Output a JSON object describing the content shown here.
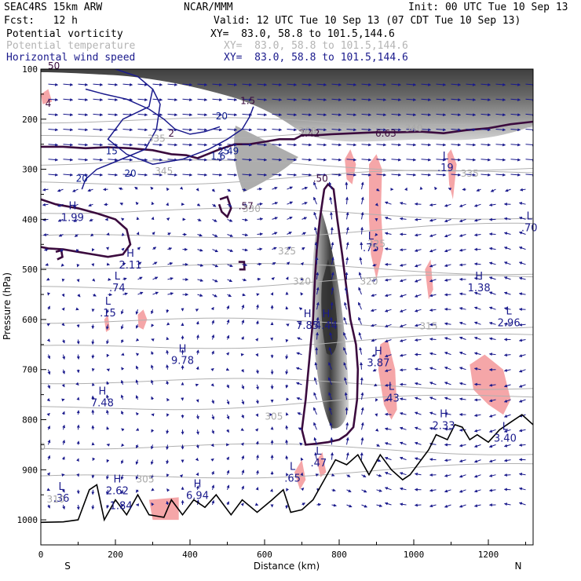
{
  "header": {
    "model": "SEAC4RS 15km ARW",
    "org": "NCAR/MMM",
    "init": "Init: 00 UTC Tue 10 Sep 13",
    "fcst": "Fcst:   12 h",
    "valid": "Valid: 12 UTC Tue 10 Sep 13 (07 CDT Tue 10 Sep 13)"
  },
  "legend": [
    {
      "name": "Potential vorticity",
      "xy": "XY=  83.0, 58.8 to 101.5,144.6",
      "color": "#000000"
    },
    {
      "name": "Potential temperature",
      "xy": "XY=  83.0, 58.8 to 101.5,144.6",
      "color": "#b4b4b4"
    },
    {
      "name": "Horizontal wind speed",
      "xy": "XY=  83.0, 58.8 to 101.5,144.6",
      "color": "#1a1a8c"
    }
  ],
  "chart_data": {
    "type": "cross-section",
    "xlabel": "Distance (km)",
    "ylabel": "Pressure (hPa)",
    "xlim": [
      0,
      1320
    ],
    "ylim": [
      1050,
      100
    ],
    "x_ticks": [
      0,
      200,
      400,
      600,
      800,
      1000,
      1200
    ],
    "x_tick_labels": [
      "0",
      "200",
      "400",
      "600",
      "800",
      "1000",
      "1200"
    ],
    "y_ticks": [
      100,
      200,
      300,
      400,
      500,
      600,
      700,
      800,
      900,
      1000
    ],
    "y_tick_labels": [
      "100",
      "200",
      "300",
      "400",
      "500",
      "600",
      "700",
      "800",
      "900",
      "1000"
    ],
    "x_end_labels": {
      "left": "S",
      "right": "N"
    },
    "colors": {
      "pv_shade": "#3a3a3a",
      "pv_contour": "#3b0b3e",
      "theta": "#b0b0b0",
      "wind": "#1a1a8c",
      "pink": "#f5a6a8",
      "terrain": "#000000"
    },
    "terrain": [
      [
        0,
        1005
      ],
      [
        60,
        1004
      ],
      [
        100,
        1000
      ],
      [
        130,
        940
      ],
      [
        150,
        930
      ],
      [
        170,
        1000
      ],
      [
        200,
        960
      ],
      [
        230,
        990
      ],
      [
        260,
        950
      ],
      [
        290,
        990
      ],
      [
        330,
        995
      ],
      [
        350,
        960
      ],
      [
        380,
        990
      ],
      [
        410,
        960
      ],
      [
        440,
        975
      ],
      [
        470,
        950
      ],
      [
        510,
        990
      ],
      [
        540,
        960
      ],
      [
        580,
        985
      ],
      [
        620,
        960
      ],
      [
        650,
        940
      ],
      [
        670,
        985
      ],
      [
        700,
        980
      ],
      [
        730,
        960
      ],
      [
        760,
        920
      ],
      [
        790,
        880
      ],
      [
        820,
        890
      ],
      [
        850,
        870
      ],
      [
        880,
        910
      ],
      [
        910,
        870
      ],
      [
        940,
        900
      ],
      [
        970,
        920
      ],
      [
        990,
        910
      ],
      [
        1020,
        880
      ],
      [
        1040,
        860
      ],
      [
        1060,
        830
      ],
      [
        1090,
        840
      ],
      [
        1110,
        810
      ],
      [
        1130,
        815
      ],
      [
        1150,
        840
      ],
      [
        1170,
        830
      ],
      [
        1200,
        845
      ],
      [
        1230,
        820
      ],
      [
        1260,
        805
      ],
      [
        1290,
        790
      ],
      [
        1320,
        810
      ]
    ],
    "hl_labels": [
      {
        "letter": "H",
        "x": 85,
        "p": 380,
        "value": "1.99"
      },
      {
        "letter": "H",
        "x": 240,
        "p": 475,
        "value": "2.11"
      },
      {
        "letter": "L",
        "x": 205,
        "p": 520,
        "value": ".74"
      },
      {
        "letter": "L",
        "x": 180,
        "p": 570,
        "value": ".15"
      },
      {
        "letter": "H",
        "x": 380,
        "p": 665,
        "value": "9.78"
      },
      {
        "letter": "H",
        "x": 165,
        "p": 750,
        "value": "7.48"
      },
      {
        "letter": "H",
        "x": 205,
        "p": 925,
        "value": "2.62"
      },
      {
        "letter": "",
        "x": 215,
        "p": 955,
        "value": "1.84"
      },
      {
        "letter": "L",
        "x": 55,
        "p": 940,
        "value": ".36"
      },
      {
        "letter": "H",
        "x": 420,
        "p": 935,
        "value": "6.94"
      },
      {
        "letter": "L",
        "x": 675,
        "p": 900,
        "value": ".65"
      },
      {
        "letter": "L",
        "x": 745,
        "p": 870,
        "value": ".47"
      },
      {
        "letter": "H",
        "x": 715,
        "p": 595,
        "value": "7.85"
      },
      {
        "letter": "H",
        "x": 765,
        "p": 595,
        "value": "4.44"
      },
      {
        "letter": "H",
        "x": 905,
        "p": 670,
        "value": "3.87"
      },
      {
        "letter": "L",
        "x": 940,
        "p": 740,
        "value": ".43"
      },
      {
        "letter": "L",
        "x": 885,
        "p": 440,
        "value": ".75"
      },
      {
        "letter": "L",
        "x": 1085,
        "p": 280,
        "value": ".19"
      },
      {
        "letter": "H",
        "x": 1175,
        "p": 520,
        "value": "1.38"
      },
      {
        "letter": "L",
        "x": 1255,
        "p": 590,
        "value": "2.96"
      },
      {
        "letter": "L",
        "x": 1310,
        "p": 400,
        "value": ".70"
      },
      {
        "letter": "H",
        "x": 1080,
        "p": 795,
        "value": "2.33"
      },
      {
        "letter": "L",
        "x": 1245,
        "p": 820,
        "value": "3.40"
      }
    ],
    "pv_labels": [
      {
        "x": 550,
        "p": 380,
        "text": ".57"
      },
      {
        "x": 750,
        "p": 325,
        "text": ".50"
      },
      {
        "x": 350,
        "p": 235,
        "text": "2"
      },
      {
        "x": 555,
        "p": 170,
        "text": "1.5"
      },
      {
        "x": 720,
        "p": 235,
        "text": "2.42"
      },
      {
        "x": 925,
        "p": 235,
        "text": "6.63"
      },
      {
        "x": 20,
        "p": 175,
        "text": "4"
      },
      {
        "x": 35,
        "p": 100,
        "text": "50"
      }
    ],
    "theta_labels": [
      {
        "x": 565,
        "p": 385,
        "text": "330"
      },
      {
        "x": 660,
        "p": 470,
        "text": "325"
      },
      {
        "x": 700,
        "p": 530,
        "text": "320"
      },
      {
        "x": 900,
        "p": 455,
        "text": "325"
      },
      {
        "x": 880,
        "p": 530,
        "text": "320"
      },
      {
        "x": 1040,
        "p": 620,
        "text": "315"
      },
      {
        "x": 625,
        "p": 800,
        "text": "305"
      },
      {
        "x": 280,
        "p": 925,
        "text": "305"
      },
      {
        "x": 310,
        "p": 245,
        "text": "335"
      },
      {
        "x": 330,
        "p": 310,
        "text": "345"
      },
      {
        "x": 715,
        "p": 230,
        "text": "360"
      },
      {
        "x": 1000,
        "p": 225,
        "text": "340"
      },
      {
        "x": 1150,
        "p": 315,
        "text": "335"
      },
      {
        "x": 40,
        "p": 965,
        "text": "310"
      },
      {
        "x": 5,
        "p": 860,
        "text": "0"
      }
    ],
    "ws_labels": [
      {
        "x": 110,
        "p": 325,
        "text": "20"
      },
      {
        "x": 240,
        "p": 315,
        "text": "20"
      },
      {
        "x": 485,
        "p": 200,
        "text": "20"
      },
      {
        "x": 190,
        "p": 270,
        "text": "15"
      },
      {
        "x": 490,
        "p": 270,
        "text": "25"
      },
      {
        "x": 475,
        "p": 280,
        "text": "1.6"
      },
      {
        "x": 515,
        "p": 270,
        "text": "49"
      }
    ]
  }
}
